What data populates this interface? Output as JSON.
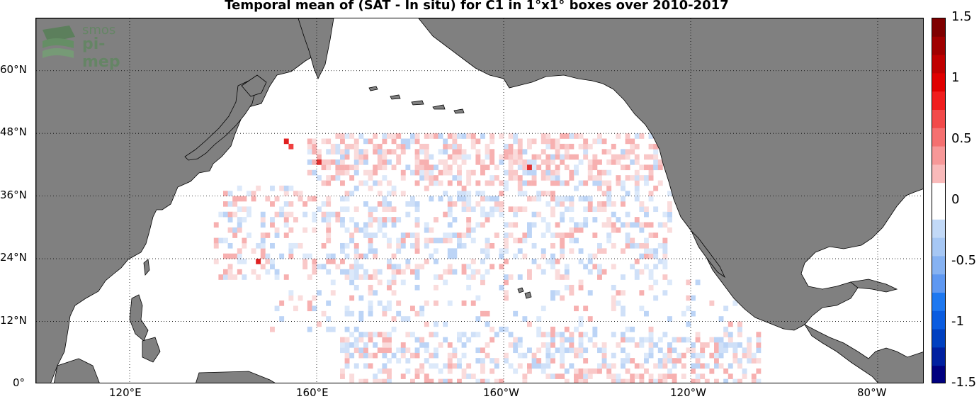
{
  "title": "Temporal mean of (SAT - In situ) for C1 in 1°x1° boxes over 2010-2017",
  "logo": {
    "line1": "smos",
    "line2": "pi-mep"
  },
  "lat_labels": [
    "60°N",
    "48°N",
    "36°N",
    "24°N",
    "12°N",
    "0°"
  ],
  "lon_labels": [
    "120°E",
    "160°E",
    "160°W",
    "120°W",
    "80°W"
  ],
  "colorbar": {
    "ticks": [
      "1.5",
      "1",
      "0.5",
      "0",
      "-0.5",
      "-1",
      "-1.5"
    ],
    "range": [
      -1.5,
      1.5
    ],
    "colors": {
      "neg_max": "#00007f",
      "neg_mid": "#1e78f0",
      "neg_low": "#dce9fa",
      "zero": "#ffffff",
      "pos_low": "#fadcdc",
      "pos_mid": "#f01e1e",
      "pos_max": "#7f0000"
    }
  },
  "map": {
    "region": {
      "lon_min": 100,
      "lon_max": 290,
      "lat_min": 0,
      "lat_max": 70
    },
    "land_color": "#808080",
    "ocean_color": "#ffffff",
    "grid": "dotted",
    "cell_size_deg": 1
  }
}
